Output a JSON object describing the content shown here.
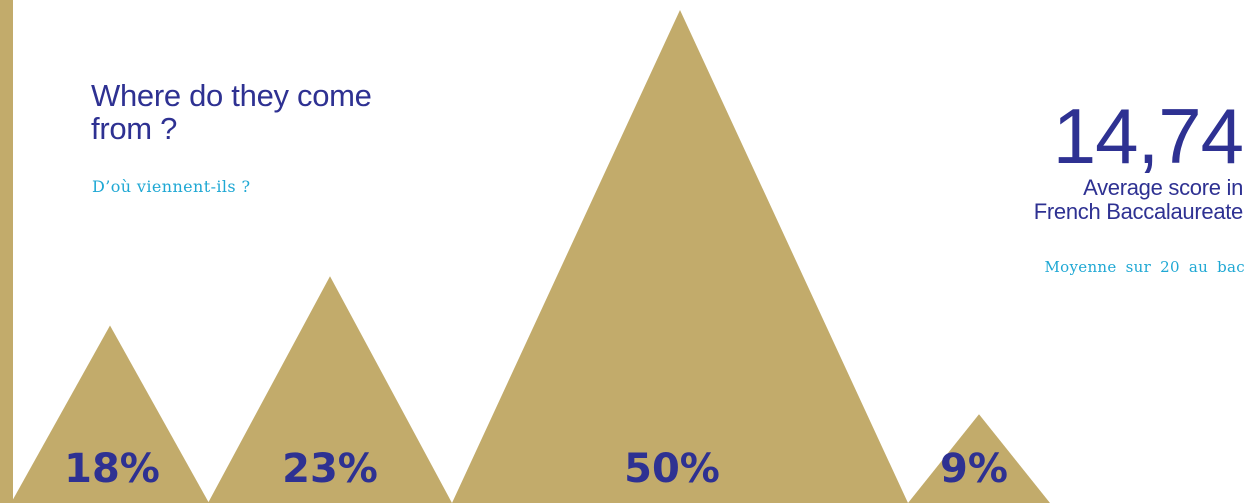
{
  "heading": {
    "title": "Where do they come from ?",
    "subtitle": "D’où viennent-ils ?"
  },
  "stat": {
    "value": "14,74",
    "label_line1": "Average score in",
    "label_line2": "French Baccalaureate",
    "sub": "Moyenne sur 20 au bac"
  },
  "colors": {
    "triangle": "#c2ab6b",
    "label": "#2e3192",
    "accent": "#1fa8d4"
  },
  "chart_data": {
    "type": "bar",
    "values": [
      18,
      23,
      50,
      9
    ],
    "labels": [
      "18%",
      "23%",
      "50%",
      "9%"
    ],
    "unit": "%",
    "ylim": [
      0,
      50
    ]
  }
}
